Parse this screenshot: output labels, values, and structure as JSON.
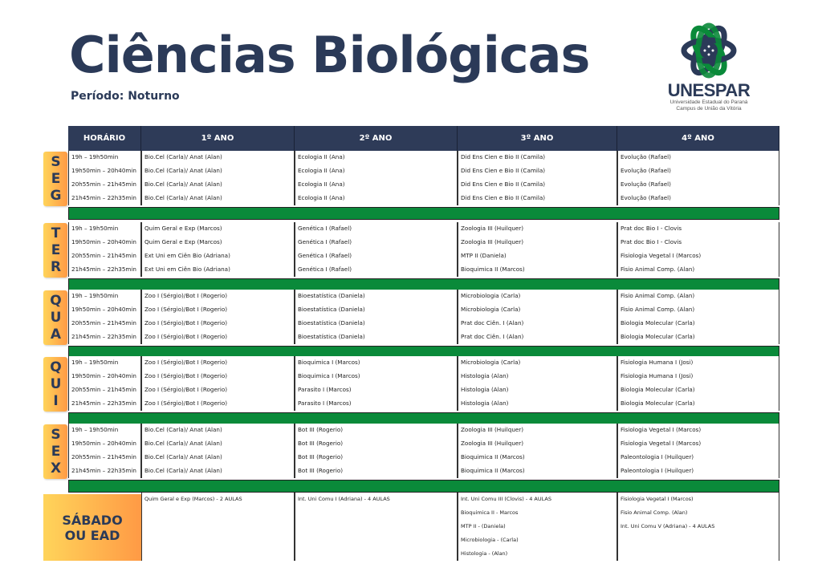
{
  "header": {
    "title": "Ciências Biológicas",
    "subtitle": "Período: Noturno"
  },
  "logo": {
    "name": "UNESPAR",
    "line1": "Universidade Estadual do Paraná",
    "line2": "Campus de União da Vitória",
    "colors": {
      "green": "#0a8a3a",
      "navy": "#2b3a58"
    }
  },
  "columns": [
    "HORÁRIO",
    "1º ANO",
    "2º ANO",
    "3º ANO",
    "4º ANO"
  ],
  "colors": {
    "header": "#2e3b58",
    "separator": "#0a8a3a",
    "day_badge": "#ffb04f"
  },
  "days": [
    {
      "label": "SEG",
      "rows": [
        [
          "19h – 19h50min",
          "Bio.Cel (Carla)/ Anat (Alan)",
          "Ecologia II (Ana)",
          "Did Ens Cien e Bio II (Camila)",
          "Evolução (Rafael)"
        ],
        [
          "19h50min – 20h40min",
          "Bio.Cel (Carla)/ Anat (Alan)",
          "Ecologia II (Ana)",
          "Did Ens Cien e Bio II (Camila)",
          "Evolução (Rafael)"
        ],
        [
          "20h55min – 21h45min",
          "Bio.Cel (Carla)/ Anat (Alan)",
          "Ecologia II (Ana)",
          "Did Ens Cien e Bio II (Camila)",
          "Evolução (Rafael)"
        ],
        [
          "21h45min – 22h35min",
          "Bio.Cel (Carla)/ Anat (Alan)",
          "Ecologia II (Ana)",
          "Did Ens Cien e Bio II (Camila)",
          "Evolução (Rafael)"
        ]
      ]
    },
    {
      "label": "TER",
      "rows": [
        [
          "19h – 19h50min",
          "Quim Geral e Exp (Marcos)",
          "Genética I (Rafael)",
          "Zoologia III (Huilquer)",
          "Prat doc Bio I - Clovis"
        ],
        [
          "19h50min – 20h40min",
          "Quim Geral e Exp (Marcos)",
          "Genética I (Rafael)",
          "Zoologia III (Huilquer)",
          "Prat doc Bio I - Clovis"
        ],
        [
          "20h55min – 21h45min",
          "Ext Uni em Ciên Bio (Adriana)",
          "Genética I (Rafael)",
          "MTP II (Daniela)",
          "Fisiologia Vegetal I (Marcos)"
        ],
        [
          "21h45min – 22h35min",
          "Ext Uni em Ciên Bio (Adriana)",
          "Genética I (Rafael)",
          "Bioquimica II (Marcos)",
          "Fisio Animal Comp. (Alan)"
        ]
      ]
    },
    {
      "label": "QUA",
      "rows": [
        [
          "19h – 19h50min",
          "Zoo I (Sérgio)/Bot I (Rogerio)",
          "Bioestatística (Daniela)",
          "Microbiologia (Carla)",
          "Fisio Animal Comp. (Alan)"
        ],
        [
          "19h50min – 20h40min",
          "Zoo I (Sérgio)/Bot I (Rogerio)",
          "Bioestatística (Daniela)",
          "Microbiologia (Carla)",
          "Fisio Animal Comp. (Alan)"
        ],
        [
          "20h55min – 21h45min",
          "Zoo I (Sérgio)/Bot I (Rogerio)",
          "Bioestatística (Daniela)",
          "Prat doc Ciên. I (Alan)",
          "Biologia Molecular (Carla)"
        ],
        [
          "21h45min – 22h35min",
          "Zoo I (Sérgio)/Bot I (Rogerio)",
          "Bioestatística (Daniela)",
          "Prat doc Ciên. I (Alan)",
          "Biologia Molecular (Carla)"
        ]
      ]
    },
    {
      "label": "QUI",
      "rows": [
        [
          "19h – 19h50min",
          "Zoo I (Sérgio)/Bot I (Rogerio)",
          "Bioquimica I (Marcos)",
          " Microbiologia (Carla)",
          "Fisiologia Humana I (Josi)"
        ],
        [
          "19h50min – 20h40min",
          "Zoo I (Sérgio)/Bot I (Rogerio)",
          "Bioquimica I (Marcos)",
          "Histologia (Alan)",
          "Fisiologia Humana I (Josi)"
        ],
        [
          "20h55min – 21h45min",
          "Zoo I (Sérgio)/Bot I (Rogerio)",
          "Parasito I (Marcos)",
          "Histologia (Alan)",
          "Biologia Molecular (Carla)"
        ],
        [
          "21h45min – 22h35min",
          "Zoo I (Sérgio)/Bot I (Rogerio)",
          "Parasito I (Marcos)",
          "Histologia (Alan)",
          "Biologia Molecular (Carla)"
        ]
      ]
    },
    {
      "label": "SEX",
      "rows": [
        [
          "19h – 19h50min",
          "Bio.Cel (Carla)/ Anat (Alan)",
          "Bot III (Rogerio)",
          "Zoologia III (Huilquer)",
          " Fisiologia Vegetal I (Marcos)"
        ],
        [
          "19h50min – 20h40min",
          "Bio.Cel (Carla)/ Anat (Alan)",
          "Bot III (Rogerio)",
          "Zoologia III (Huilquer)",
          " Fisiologia Vegetal I (Marcos)"
        ],
        [
          "20h55min – 21h45min",
          "Bio.Cel (Carla)/ Anat (Alan)",
          "Bot III (Rogerio)",
          "Bioquimica II (Marcos)",
          "Paleontologia I (Huilquer)"
        ],
        [
          "21h45min – 22h35min",
          "Bio.Cel (Carla)/ Anat (Alan)",
          "Bot III (Rogerio)",
          "Bioquimica II (Marcos)",
          "Paleontologia I (Huilquer)"
        ]
      ]
    }
  ],
  "saturday": {
    "label_line1": "SÁBADO",
    "label_line2": "OU EAD",
    "rows": [
      [
        "Quim Geral e Exp (Marcos) - 2 AULAS",
        "Int. Uni Comu I (Adriana) - 4 AULAS",
        "Int. Uni Comu III (Clovis) - 4 AULAS",
        "Fisiologia Vegetal I (Marcos)"
      ],
      [
        "",
        "",
        "Bioquimica II - Marcos",
        "Fisio Animal Comp. (Alan)"
      ],
      [
        "",
        "",
        "MTP II - (Daniela)",
        "Int. Uni Comu V (Adriana) - 4 AULAS"
      ],
      [
        "",
        "",
        "Microbiologia - (Carla)",
        ""
      ],
      [
        "",
        "",
        "Histologia - (Alan)",
        ""
      ]
    ]
  }
}
